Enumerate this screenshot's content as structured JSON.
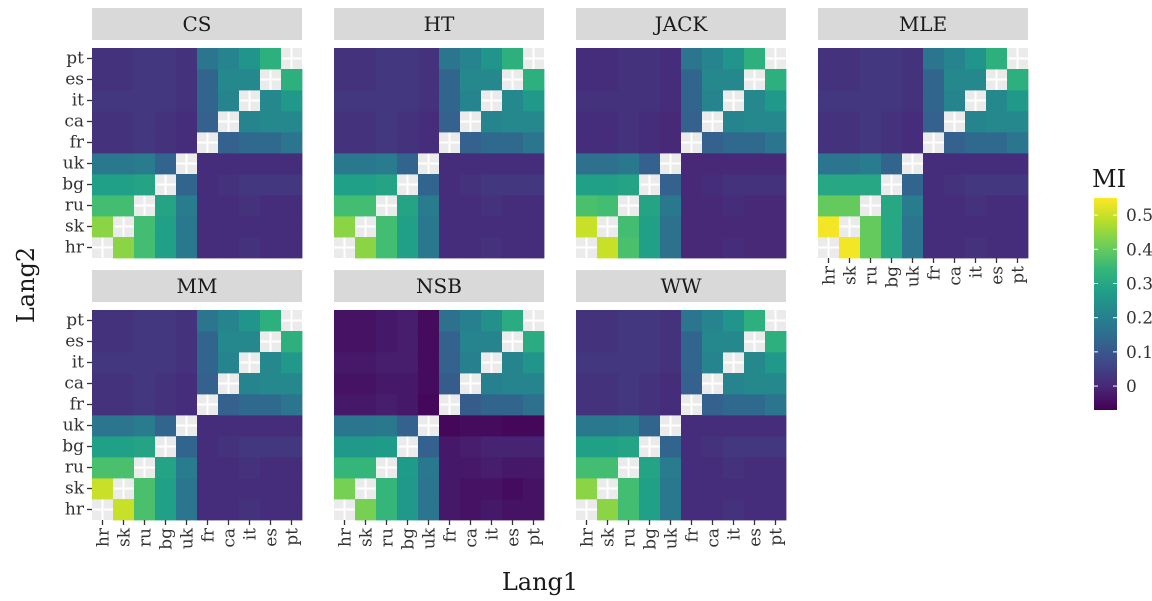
{
  "chart_data": {
    "type": "heatmap",
    "xlabel": "Lang1",
    "ylabel": "Lang2",
    "x_categories": [
      "hr",
      "sk",
      "ru",
      "bg",
      "uk",
      "fr",
      "ca",
      "it",
      "es",
      "pt"
    ],
    "y_categories": [
      "hr",
      "sk",
      "ru",
      "bg",
      "uk",
      "fr",
      "ca",
      "it",
      "es",
      "pt"
    ],
    "legend": {
      "title": "MI",
      "ticks": [
        0,
        0.1,
        0.2,
        0.3,
        0.4,
        0.5
      ],
      "tick_labels": [
        "0",
        "0.1",
        "0.2",
        "0.3",
        "0.4",
        "0.5"
      ],
      "range": [
        -0.07,
        0.55
      ],
      "colormap": "viridis",
      "placement": "right"
    },
    "diagonal": "empty",
    "panels": [
      {
        "name": "CS",
        "matrix": [
          [
            null,
            0.44,
            0.36,
            0.28,
            0.18,
            0.01,
            0.01,
            0.02,
            0.01,
            0.01
          ],
          [
            0.44,
            null,
            0.36,
            0.28,
            0.18,
            0.01,
            0.01,
            0.01,
            0.01,
            0.01
          ],
          [
            0.36,
            0.36,
            null,
            0.29,
            0.19,
            0.01,
            0.01,
            0.02,
            0.01,
            0.01
          ],
          [
            0.28,
            0.28,
            0.29,
            null,
            0.13,
            0.01,
            0.02,
            0.03,
            0.03,
            0.03
          ],
          [
            0.18,
            0.18,
            0.19,
            0.13,
            null,
            0.01,
            0.01,
            0.01,
            0.01,
            0.01
          ],
          [
            0.02,
            0.02,
            0.03,
            0.02,
            0.01,
            null,
            0.12,
            0.14,
            0.14,
            0.17
          ],
          [
            0.02,
            0.02,
            0.03,
            0.02,
            0.01,
            0.12,
            null,
            0.21,
            0.22,
            0.22
          ],
          [
            0.03,
            0.03,
            0.03,
            0.03,
            0.02,
            0.13,
            0.21,
            null,
            0.22,
            0.26
          ],
          [
            0.02,
            0.02,
            0.03,
            0.03,
            0.02,
            0.13,
            0.22,
            0.22,
            null,
            0.32
          ],
          [
            0.02,
            0.02,
            0.03,
            0.03,
            0.02,
            0.17,
            0.21,
            0.25,
            0.32,
            null
          ]
        ]
      },
      {
        "name": "HT",
        "matrix": [
          [
            null,
            0.44,
            0.36,
            0.28,
            0.18,
            0.01,
            0.01,
            0.02,
            0.01,
            0.01
          ],
          [
            0.44,
            null,
            0.36,
            0.28,
            0.18,
            0.01,
            0.01,
            0.01,
            0.01,
            0.01
          ],
          [
            0.36,
            0.36,
            null,
            0.29,
            0.19,
            0.01,
            0.01,
            0.02,
            0.01,
            0.01
          ],
          [
            0.28,
            0.28,
            0.29,
            null,
            0.13,
            0.01,
            0.02,
            0.03,
            0.03,
            0.03
          ],
          [
            0.18,
            0.18,
            0.19,
            0.13,
            null,
            0.01,
            0.01,
            0.01,
            0.01,
            0.01
          ],
          [
            0.02,
            0.02,
            0.03,
            0.02,
            0.01,
            null,
            0.12,
            0.14,
            0.14,
            0.17
          ],
          [
            0.02,
            0.02,
            0.03,
            0.02,
            0.01,
            0.12,
            null,
            0.21,
            0.22,
            0.22
          ],
          [
            0.03,
            0.03,
            0.03,
            0.03,
            0.02,
            0.13,
            0.21,
            null,
            0.22,
            0.26
          ],
          [
            0.02,
            0.02,
            0.03,
            0.03,
            0.02,
            0.13,
            0.22,
            0.22,
            null,
            0.32
          ],
          [
            0.02,
            0.02,
            0.03,
            0.03,
            0.02,
            0.17,
            0.21,
            0.25,
            0.32,
            null
          ]
        ]
      },
      {
        "name": "JACK",
        "matrix": [
          [
            null,
            0.5,
            0.37,
            0.28,
            0.16,
            0.0,
            0.0,
            0.01,
            0.0,
            0.0
          ],
          [
            0.5,
            null,
            0.36,
            0.28,
            0.16,
            0.0,
            0.0,
            0.0,
            0.0,
            0.0
          ],
          [
            0.37,
            0.36,
            null,
            0.29,
            0.18,
            0.0,
            0.0,
            0.01,
            0.0,
            0.0
          ],
          [
            0.28,
            0.28,
            0.29,
            null,
            0.12,
            0.0,
            0.01,
            0.02,
            0.02,
            0.02
          ],
          [
            0.16,
            0.16,
            0.18,
            0.12,
            null,
            0.0,
            0.0,
            0.0,
            0.0,
            0.0
          ],
          [
            0.01,
            0.01,
            0.02,
            0.01,
            0.0,
            null,
            0.12,
            0.14,
            0.14,
            0.17
          ],
          [
            0.01,
            0.01,
            0.02,
            0.01,
            0.0,
            0.12,
            null,
            0.21,
            0.22,
            0.22
          ],
          [
            0.02,
            0.02,
            0.02,
            0.02,
            0.01,
            0.13,
            0.21,
            null,
            0.22,
            0.26
          ],
          [
            0.01,
            0.01,
            0.02,
            0.02,
            0.01,
            0.13,
            0.22,
            0.22,
            null,
            0.32
          ],
          [
            0.01,
            0.01,
            0.02,
            0.02,
            0.01,
            0.17,
            0.21,
            0.25,
            0.32,
            null
          ]
        ]
      },
      {
        "name": "MLE",
        "matrix": [
          [
            null,
            0.54,
            0.4,
            0.3,
            0.17,
            0.01,
            0.01,
            0.02,
            0.01,
            0.01
          ],
          [
            0.54,
            null,
            0.4,
            0.3,
            0.17,
            0.01,
            0.01,
            0.01,
            0.01,
            0.01
          ],
          [
            0.4,
            0.4,
            null,
            0.3,
            0.19,
            0.01,
            0.01,
            0.02,
            0.01,
            0.01
          ],
          [
            0.3,
            0.3,
            0.3,
            null,
            0.13,
            0.01,
            0.02,
            0.03,
            0.03,
            0.03
          ],
          [
            0.17,
            0.17,
            0.19,
            0.13,
            null,
            0.01,
            0.01,
            0.01,
            0.01,
            0.01
          ],
          [
            0.02,
            0.02,
            0.03,
            0.02,
            0.01,
            null,
            0.12,
            0.14,
            0.14,
            0.17
          ],
          [
            0.02,
            0.02,
            0.03,
            0.02,
            0.01,
            0.12,
            null,
            0.21,
            0.22,
            0.22
          ],
          [
            0.03,
            0.03,
            0.03,
            0.03,
            0.02,
            0.13,
            0.21,
            null,
            0.22,
            0.26
          ],
          [
            0.02,
            0.02,
            0.03,
            0.03,
            0.02,
            0.13,
            0.22,
            0.22,
            null,
            0.32
          ],
          [
            0.02,
            0.02,
            0.03,
            0.03,
            0.02,
            0.17,
            0.21,
            0.25,
            0.32,
            null
          ]
        ]
      },
      {
        "name": "MM",
        "matrix": [
          [
            null,
            0.5,
            0.37,
            0.28,
            0.17,
            0.01,
            0.01,
            0.02,
            0.01,
            0.01
          ],
          [
            0.5,
            null,
            0.37,
            0.28,
            0.17,
            0.01,
            0.01,
            0.01,
            0.01,
            0.01
          ],
          [
            0.37,
            0.37,
            null,
            0.29,
            0.19,
            0.01,
            0.01,
            0.02,
            0.01,
            0.01
          ],
          [
            0.28,
            0.28,
            0.29,
            null,
            0.13,
            0.01,
            0.02,
            0.03,
            0.03,
            0.03
          ],
          [
            0.17,
            0.17,
            0.19,
            0.13,
            null,
            0.01,
            0.01,
            0.01,
            0.01,
            0.01
          ],
          [
            0.02,
            0.02,
            0.03,
            0.02,
            0.01,
            null,
            0.12,
            0.14,
            0.14,
            0.17
          ],
          [
            0.02,
            0.02,
            0.03,
            0.02,
            0.01,
            0.12,
            null,
            0.21,
            0.22,
            0.22
          ],
          [
            0.03,
            0.03,
            0.03,
            0.03,
            0.02,
            0.13,
            0.21,
            null,
            0.22,
            0.26
          ],
          [
            0.02,
            0.02,
            0.03,
            0.03,
            0.02,
            0.13,
            0.22,
            0.22,
            null,
            0.32
          ],
          [
            0.02,
            0.02,
            0.03,
            0.03,
            0.02,
            0.17,
            0.21,
            0.25,
            0.32,
            null
          ]
        ]
      },
      {
        "name": "NSB",
        "matrix": [
          [
            null,
            0.42,
            0.34,
            0.26,
            0.17,
            -0.03,
            -0.04,
            -0.03,
            -0.04,
            -0.04
          ],
          [
            0.42,
            null,
            0.34,
            0.26,
            0.17,
            -0.03,
            -0.04,
            -0.04,
            -0.05,
            -0.04
          ],
          [
            0.34,
            0.34,
            null,
            0.27,
            0.18,
            -0.03,
            -0.03,
            -0.02,
            -0.03,
            -0.03
          ],
          [
            0.26,
            0.26,
            0.27,
            null,
            0.12,
            -0.03,
            -0.02,
            -0.01,
            -0.01,
            -0.01
          ],
          [
            0.17,
            0.17,
            0.18,
            0.12,
            null,
            -0.06,
            -0.05,
            -0.05,
            -0.06,
            -0.06
          ],
          [
            -0.03,
            -0.03,
            -0.02,
            -0.03,
            -0.06,
            null,
            0.11,
            0.13,
            0.13,
            0.16
          ],
          [
            -0.04,
            -0.04,
            -0.03,
            -0.03,
            -0.05,
            0.11,
            null,
            0.2,
            0.21,
            0.21
          ],
          [
            -0.03,
            -0.03,
            -0.02,
            -0.02,
            -0.05,
            0.12,
            0.2,
            null,
            0.21,
            0.25
          ],
          [
            -0.04,
            -0.04,
            -0.03,
            -0.02,
            -0.05,
            0.12,
            0.21,
            0.21,
            null,
            0.31
          ],
          [
            -0.04,
            -0.04,
            -0.03,
            -0.02,
            -0.05,
            0.16,
            0.2,
            0.24,
            0.31,
            null
          ]
        ]
      },
      {
        "name": "WW",
        "matrix": [
          [
            null,
            0.44,
            0.36,
            0.28,
            0.18,
            0.01,
            0.01,
            0.02,
            0.01,
            0.01
          ],
          [
            0.44,
            null,
            0.36,
            0.28,
            0.18,
            0.01,
            0.01,
            0.01,
            0.01,
            0.01
          ],
          [
            0.36,
            0.36,
            null,
            0.29,
            0.19,
            0.01,
            0.01,
            0.02,
            0.01,
            0.01
          ],
          [
            0.28,
            0.28,
            0.29,
            null,
            0.13,
            0.01,
            0.02,
            0.03,
            0.03,
            0.03
          ],
          [
            0.18,
            0.18,
            0.19,
            0.13,
            null,
            0.01,
            0.01,
            0.01,
            0.01,
            0.01
          ],
          [
            0.02,
            0.02,
            0.03,
            0.02,
            0.01,
            null,
            0.12,
            0.14,
            0.14,
            0.17
          ],
          [
            0.02,
            0.02,
            0.03,
            0.02,
            0.01,
            0.12,
            null,
            0.21,
            0.22,
            0.22
          ],
          [
            0.03,
            0.03,
            0.03,
            0.03,
            0.02,
            0.13,
            0.21,
            null,
            0.22,
            0.26
          ],
          [
            0.02,
            0.02,
            0.03,
            0.03,
            0.02,
            0.13,
            0.22,
            0.22,
            null,
            0.32
          ],
          [
            0.02,
            0.02,
            0.03,
            0.03,
            0.02,
            0.17,
            0.21,
            0.25,
            0.32,
            null
          ]
        ]
      }
    ]
  },
  "colors": {
    "strip_background": "#d9d9d9",
    "axis_text": "#333333",
    "viridis": [
      "#440154",
      "#482878",
      "#3e4989",
      "#31688e",
      "#26828e",
      "#1f9e89",
      "#35b779",
      "#6ece58",
      "#b5de2b",
      "#fde725"
    ]
  }
}
